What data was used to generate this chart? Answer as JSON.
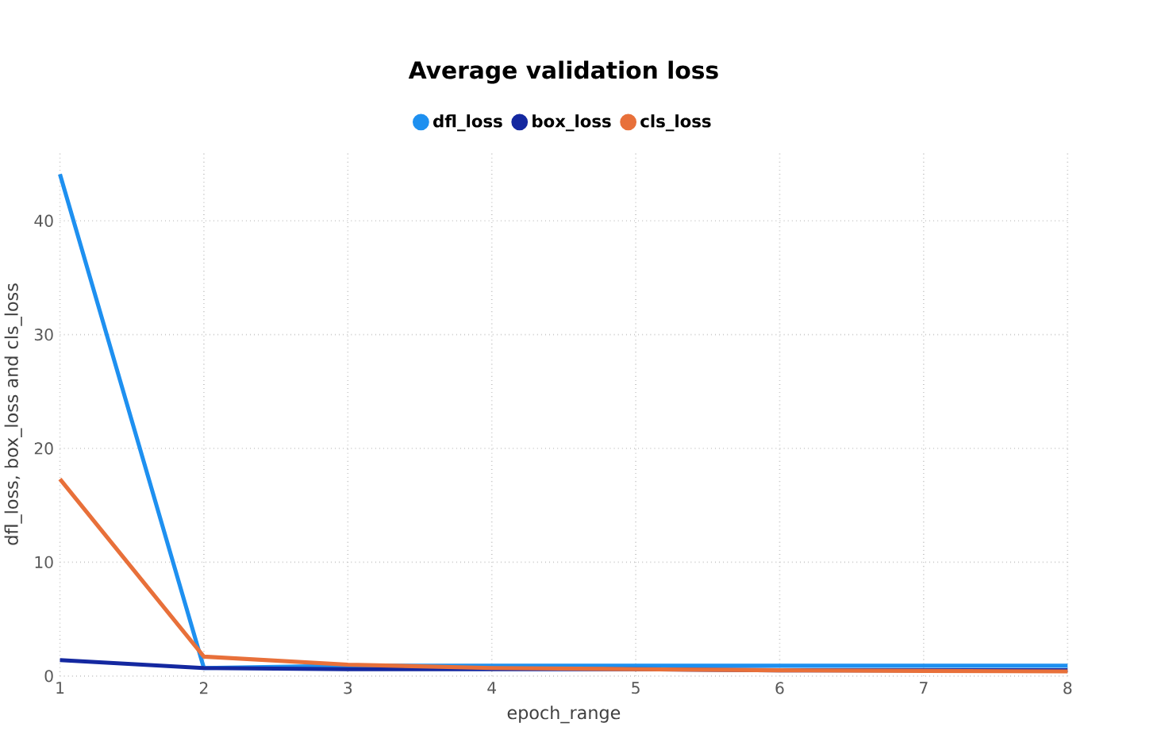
{
  "chart_data": {
    "type": "line",
    "title": "Average validation loss",
    "xlabel": "epoch_range",
    "ylabel": "dfl_loss, box_loss and cls_loss",
    "x": [
      1,
      2,
      3,
      4,
      5,
      6,
      7,
      8
    ],
    "series": [
      {
        "name": "dfl_loss",
        "color": "#1e90f0",
        "values": [
          44.1,
          0.7,
          0.9,
          0.9,
          0.9,
          0.9,
          0.9,
          0.9
        ]
      },
      {
        "name": "box_loss",
        "color": "#1428a0",
        "values": [
          1.4,
          0.7,
          0.6,
          0.6,
          0.6,
          0.5,
          0.5,
          0.5
        ]
      },
      {
        "name": "cls_loss",
        "color": "#e8703a",
        "values": [
          17.3,
          1.7,
          1.0,
          0.7,
          0.6,
          0.5,
          0.45,
          0.4
        ]
      }
    ],
    "xlim": [
      1,
      8
    ],
    "xticks": [
      1,
      2,
      3,
      4,
      5,
      6,
      7,
      8
    ],
    "ylim": [
      0,
      46
    ],
    "yticks": [
      0,
      10,
      20,
      30,
      40
    ],
    "grid": true,
    "legend": "top",
    "marker": "none",
    "line_style": "solid"
  }
}
